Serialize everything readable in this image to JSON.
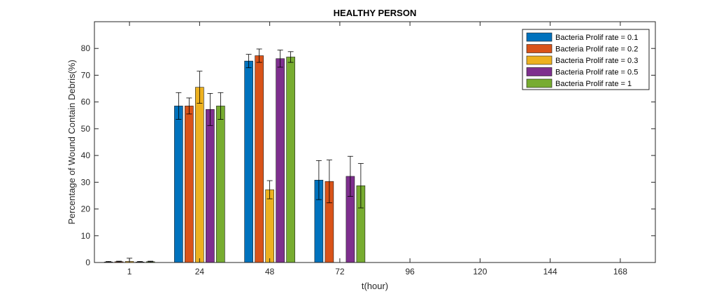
{
  "chart_data": {
    "type": "bar",
    "title": "HEALTHY PERSON",
    "xlabel": "t(hour)",
    "ylabel": "Percentage of Wound Contain Debris(%)",
    "categories": [
      "1",
      "24",
      "48",
      "72",
      "96",
      "120",
      "144",
      "168"
    ],
    "ylim": [
      0,
      90
    ],
    "yticks": [
      0,
      10,
      20,
      30,
      40,
      50,
      60,
      70,
      80
    ],
    "grid": false,
    "legend_position": "top-right",
    "series": [
      {
        "name": "Bacteria Prolif rate = 0.1",
        "color": "#0072BD",
        "values": [
          0.2,
          58.5,
          75.3,
          30.8,
          0,
          0,
          0,
          0
        ],
        "errors": [
          0.2,
          5.0,
          2.5,
          7.3,
          0,
          0,
          0,
          0
        ]
      },
      {
        "name": "Bacteria Prolif rate = 0.2",
        "color": "#D95319",
        "values": [
          0.3,
          58.5,
          77.3,
          30.3,
          0,
          0,
          0,
          0
        ],
        "errors": [
          0.2,
          3.0,
          2.5,
          8.0,
          0,
          0,
          0,
          0
        ]
      },
      {
        "name": "Bacteria Prolif rate = 0.3",
        "color": "#EDB120",
        "values": [
          0.4,
          65.5,
          27.2,
          0,
          0,
          0,
          0,
          0
        ],
        "errors": [
          1.2,
          6.0,
          3.4,
          0,
          0,
          0,
          0,
          0
        ]
      },
      {
        "name": "Bacteria Prolif rate = 0.5",
        "color": "#7E2F8E",
        "values": [
          0.2,
          57.2,
          76.2,
          32.2,
          0,
          0,
          0,
          0
        ],
        "errors": [
          0.2,
          6.0,
          3.2,
          7.5,
          0,
          0,
          0,
          0
        ]
      },
      {
        "name": "Bacteria Prolif rate = 1",
        "color": "#77AC30",
        "values": [
          0.3,
          58.5,
          76.8,
          28.7,
          0,
          0,
          0,
          0
        ],
        "errors": [
          0.2,
          5.0,
          2.0,
          8.3,
          0,
          0,
          0,
          0
        ]
      }
    ]
  }
}
